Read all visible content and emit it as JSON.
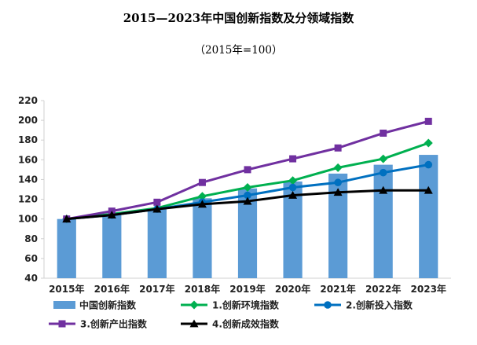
{
  "page": {
    "title": "2015—2023年中国创新指数及分领域指数",
    "subtitle": "（2015年=100）"
  },
  "chart_data": {
    "type": "bar+line",
    "categories": [
      "2015年",
      "2016年",
      "2017年",
      "2018年",
      "2019年",
      "2020年",
      "2021年",
      "2022年",
      "2023年"
    ],
    "ylim": [
      40,
      220
    ],
    "yticks": [
      40,
      60,
      80,
      100,
      120,
      140,
      160,
      180,
      200,
      220
    ],
    "grid": false,
    "legend_position": "bottom",
    "bar_series": {
      "name": "中国创新指数",
      "color": "#5b9bd5",
      "values": [
        100,
        104,
        111,
        121,
        131,
        138,
        146,
        155,
        165
      ]
    },
    "line_series": [
      {
        "name": "1.创新环境指数",
        "color": "#00b050",
        "marker": "diamond",
        "values": [
          100,
          105,
          111,
          123,
          132,
          139,
          152,
          161,
          177
        ]
      },
      {
        "name": "2.创新投入指数",
        "color": "#0070c0",
        "marker": "circle",
        "values": [
          100,
          104,
          110,
          117,
          124,
          132,
          137,
          147,
          155
        ]
      },
      {
        "name": "3.创新产出指数",
        "color": "#7030a0",
        "marker": "square",
        "values": [
          100,
          108,
          117,
          137,
          150,
          161,
          172,
          187,
          199
        ]
      },
      {
        "name": "4.创新成效指数",
        "color": "#000000",
        "marker": "triangle",
        "values": [
          100,
          104,
          110,
          115,
          118,
          124,
          127,
          129,
          129
        ]
      }
    ]
  }
}
